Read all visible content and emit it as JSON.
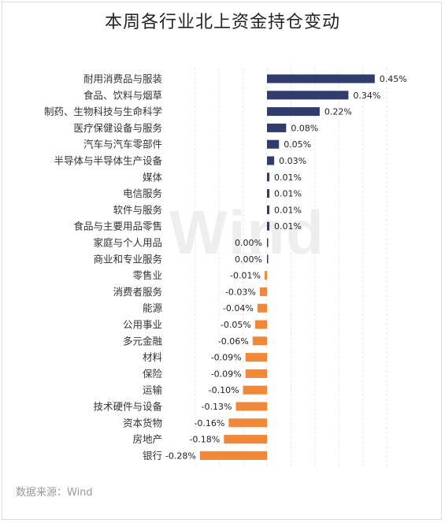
{
  "title": "本周各行业北上资金持仓变动",
  "source": "数据来源：Wind",
  "watermark": "Wind",
  "colors": {
    "positive": "#303c6c",
    "negative": "#f0883a"
  },
  "chart_data": {
    "type": "bar",
    "orientation": "horizontal",
    "title": "本周各行业北上资金持仓变动",
    "value_unit": "%",
    "xlim": [
      -0.3,
      0.5
    ],
    "grid": true,
    "categories": [
      "耐用消费品与服装",
      "食品、饮料与烟草",
      "制药、生物科技与生命科学",
      "医疗保健设备与服务",
      "汽车与汽车零部件",
      "半导体与半导体生产设备",
      "媒体",
      "电信服务",
      "软件与服务",
      "食品与主要用品零售",
      "家庭与个人用品",
      "商业和专业服务",
      "零售业",
      "消费者服务",
      "能源",
      "公用事业",
      "多元金融",
      "材料",
      "保险",
      "运输",
      "技术硬件与设备",
      "资本货物",
      "房地产",
      "银行"
    ],
    "values": [
      0.45,
      0.34,
      0.22,
      0.08,
      0.05,
      0.03,
      0.01,
      0.01,
      0.01,
      0.01,
      0.0,
      0.0,
      -0.01,
      -0.03,
      -0.04,
      -0.05,
      -0.06,
      -0.09,
      -0.09,
      -0.1,
      -0.13,
      -0.16,
      -0.18,
      -0.28
    ],
    "labels": [
      "0.45%",
      "0.34%",
      "0.22%",
      "0.08%",
      "0.05%",
      "0.03%",
      "0.01%",
      "0.01%",
      "0.01%",
      "0.01%",
      "0.00%",
      "0.00%",
      "-0.01%",
      "-0.03%",
      "-0.04%",
      "-0.05%",
      "-0.06%",
      "-0.09%",
      "-0.09%",
      "-0.10%",
      "-0.13%",
      "-0.16%",
      "-0.18%",
      "-0.28%"
    ]
  }
}
